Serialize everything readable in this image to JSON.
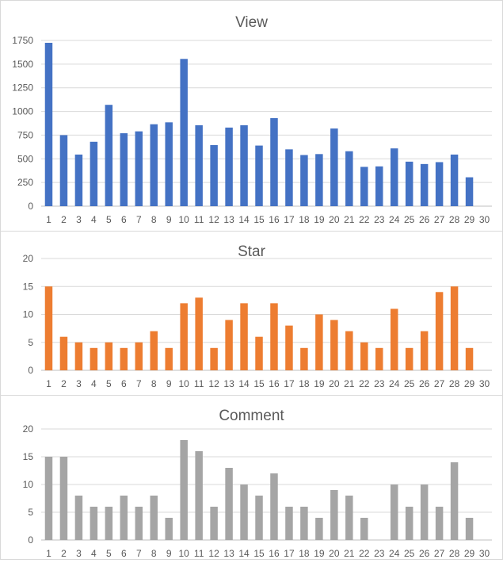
{
  "chart_data": [
    {
      "type": "bar",
      "title": "View",
      "color": "#4472c4",
      "categories": [
        "1",
        "2",
        "3",
        "4",
        "5",
        "6",
        "7",
        "8",
        "9",
        "10",
        "11",
        "12",
        "13",
        "14",
        "15",
        "16",
        "17",
        "18",
        "19",
        "20",
        "21",
        "22",
        "23",
        "24",
        "25",
        "26",
        "27",
        "28",
        "29",
        "30"
      ],
      "values": [
        1725,
        750,
        545,
        680,
        1070,
        770,
        790,
        865,
        885,
        1555,
        855,
        645,
        830,
        855,
        640,
        930,
        600,
        540,
        550,
        820,
        580,
        415,
        420,
        610,
        470,
        445,
        465,
        545,
        305,
        null
      ],
      "yticks": [
        "0",
        "250",
        "500",
        "750",
        "1000",
        "1250",
        "1500",
        "1750"
      ],
      "ylim": [
        0,
        1750
      ],
      "xlabel": "",
      "ylabel": "",
      "grid": true
    },
    {
      "type": "bar",
      "title": "Star",
      "color": "#ed7d31",
      "categories": [
        "1",
        "2",
        "3",
        "4",
        "5",
        "6",
        "7",
        "8",
        "9",
        "10",
        "11",
        "12",
        "13",
        "14",
        "15",
        "16",
        "17",
        "18",
        "19",
        "20",
        "21",
        "22",
        "23",
        "24",
        "25",
        "26",
        "27",
        "28",
        "29",
        "30"
      ],
      "values": [
        15,
        6,
        5,
        4,
        5,
        4,
        5,
        7,
        4,
        12,
        13,
        4,
        9,
        12,
        6,
        12,
        8,
        4,
        10,
        9,
        7,
        5,
        4,
        11,
        4,
        7,
        14,
        15,
        4,
        null
      ],
      "yticks": [
        "0",
        "5",
        "10",
        "15",
        "20"
      ],
      "ylim": [
        0,
        20
      ],
      "xlabel": "",
      "ylabel": "",
      "grid": true
    },
    {
      "type": "bar",
      "title": "Comment",
      "color": "#a5a5a5",
      "categories": [
        "1",
        "2",
        "3",
        "4",
        "5",
        "6",
        "7",
        "8",
        "9",
        "10",
        "11",
        "12",
        "13",
        "14",
        "15",
        "16",
        "17",
        "18",
        "19",
        "20",
        "21",
        "22",
        "23",
        "24",
        "25",
        "26",
        "27",
        "28",
        "29",
        "30"
      ],
      "values": [
        15,
        15,
        8,
        6,
        6,
        8,
        6,
        8,
        4,
        18,
        16,
        6,
        13,
        10,
        8,
        12,
        6,
        6,
        4,
        9,
        8,
        4,
        null,
        10,
        6,
        10,
        6,
        14,
        4,
        null
      ],
      "yticks": [
        "0",
        "5",
        "10",
        "15",
        "20"
      ],
      "ylim": [
        0,
        20
      ],
      "xlabel": "",
      "ylabel": "",
      "grid": true
    }
  ]
}
